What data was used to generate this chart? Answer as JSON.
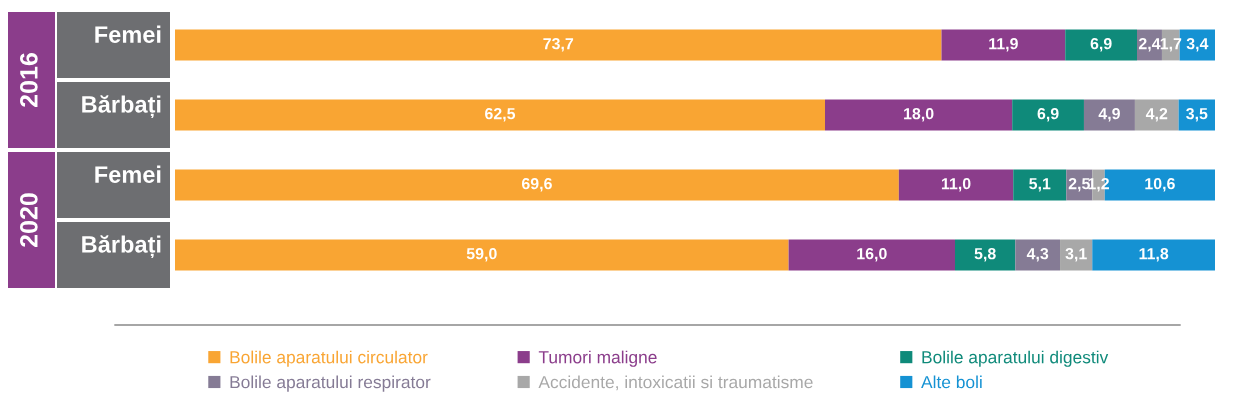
{
  "chart_data": {
    "type": "bar",
    "orientation": "horizontal",
    "stacked": true,
    "legend": "bottom",
    "categories": [
      "Femei",
      "Bărbați",
      "Femei",
      "Bărbați"
    ],
    "annotations": [
      "2016",
      "2020"
    ],
    "series": [
      {
        "name": "Bolile aparatului circulator",
        "color": "#f9a533",
        "values": [
          73.7,
          62.5,
          69.6,
          59.0
        ],
        "value_labels": [
          "73,7",
          "62,5",
          "69,6",
          "59,0"
        ]
      },
      {
        "name": "Tumori maligne",
        "color": "#8b3d8b",
        "values": [
          11.9,
          18.0,
          11.0,
          16.0
        ],
        "value_labels": [
          "11,9",
          "18,0",
          "11,0",
          "16,0"
        ]
      },
      {
        "name": "Bolile aparatului digestiv",
        "color": "#0f8a7a",
        "values": [
          6.9,
          6.9,
          5.1,
          5.8
        ],
        "value_labels": [
          "6,9",
          "6,9",
          "5,1",
          "5,8"
        ]
      },
      {
        "name": "Bolile aparatului respirator",
        "color": "#857b95",
        "values": [
          2.4,
          4.9,
          2.5,
          4.3
        ],
        "value_labels": [
          "2,4",
          "4,9",
          "2,5",
          "4,3"
        ]
      },
      {
        "name": "Accidente, intoxicatii si traumatisme",
        "color": "#a8a8a8",
        "values": [
          1.7,
          4.2,
          1.2,
          3.1
        ],
        "value_labels": [
          "1,7",
          "4,2",
          "1,2",
          "3,1"
        ]
      },
      {
        "name": "Alte boli",
        "color": "#1592d3",
        "values": [
          3.4,
          3.5,
          10.6,
          11.8
        ],
        "value_labels": [
          "3,4",
          "3,5",
          "10,6",
          "11,8"
        ]
      }
    ]
  }
}
